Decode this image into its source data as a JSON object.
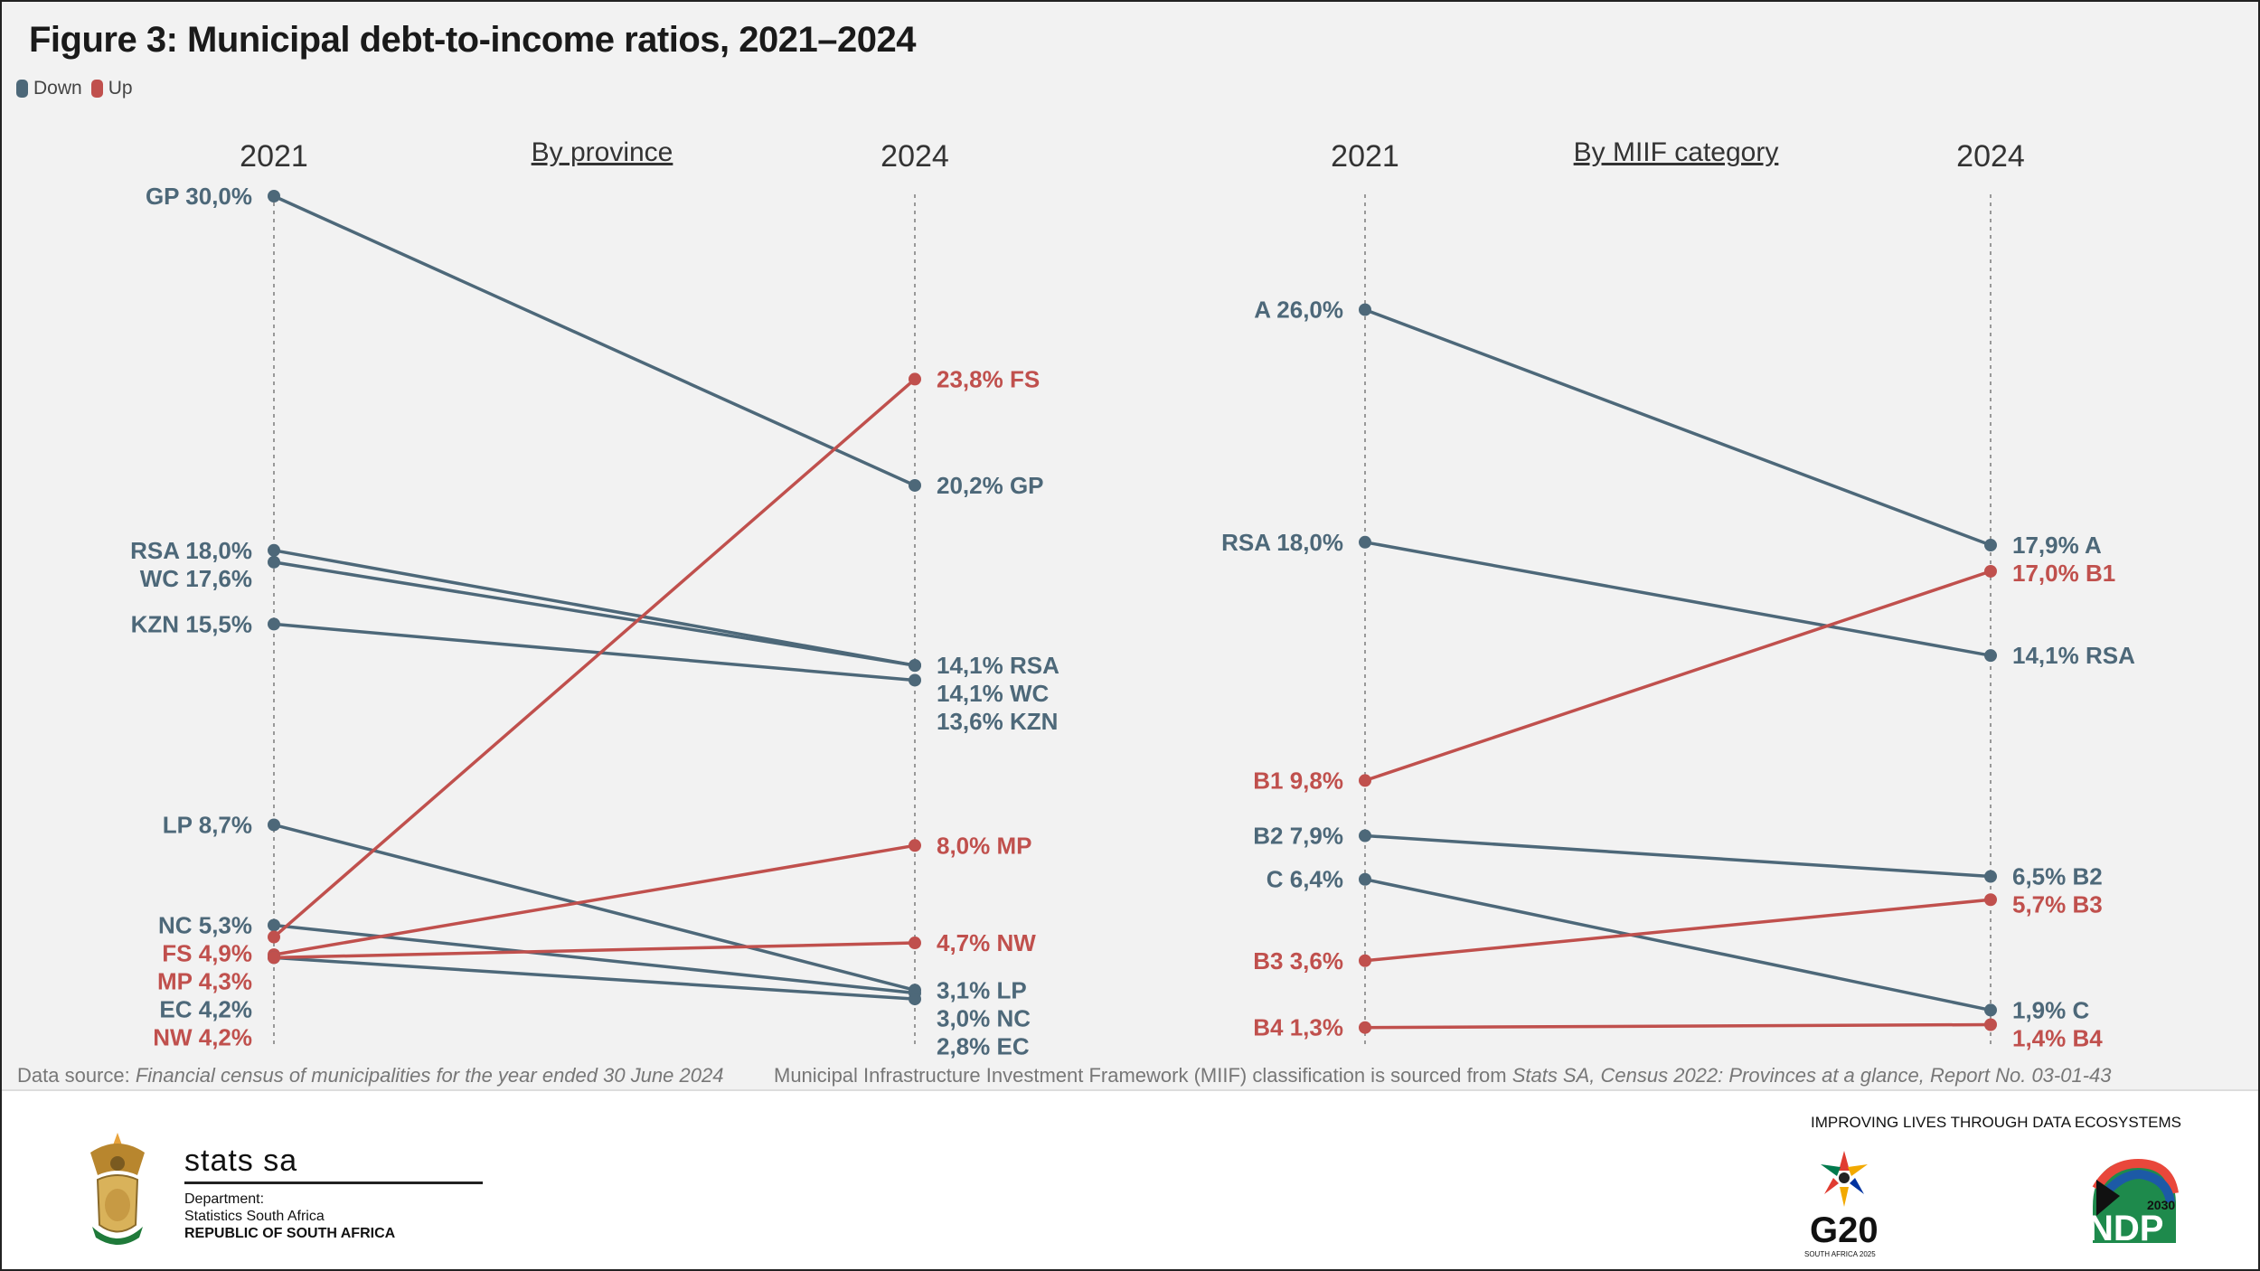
{
  "title": "Figure 3: Municipal debt-to-income ratios, 2021–2024",
  "legend": [
    {
      "label": "Down",
      "color": "#4d6879"
    },
    {
      "label": "Up",
      "color": "#c0504d"
    }
  ],
  "colors": {
    "down": "#4d6879",
    "up": "#c0504d",
    "background": "#f2f2f2"
  },
  "chart_data": [
    {
      "type": "slope",
      "subtitle": "By province",
      "x_labels": [
        "2021",
        "2024"
      ],
      "items": [
        {
          "code": "GP",
          "v2021": 30.0,
          "v2024": 20.2,
          "label_2021": "GP 30,0%",
          "label_2024": "20,2% GP",
          "direction": "down"
        },
        {
          "code": "RSA",
          "v2021": 18.0,
          "v2024": 14.1,
          "label_2021": "RSA 18,0%",
          "label_2024": "14,1% RSA",
          "direction": "down"
        },
        {
          "code": "WC",
          "v2021": 17.6,
          "v2024": 14.1,
          "label_2021": "WC 17,6%",
          "label_2024": "14,1% WC",
          "direction": "down"
        },
        {
          "code": "KZN",
          "v2021": 15.5,
          "v2024": 13.6,
          "label_2021": "KZN 15,5%",
          "label_2024": "13,6% KZN",
          "direction": "down"
        },
        {
          "code": "LP",
          "v2021": 8.7,
          "v2024": 3.1,
          "label_2021": "LP 8,7%",
          "label_2024": "3,1% LP",
          "direction": "down"
        },
        {
          "code": "NC",
          "v2021": 5.3,
          "v2024": 3.0,
          "label_2021": "NC 5,3%",
          "label_2024": "3,0% NC",
          "direction": "down"
        },
        {
          "code": "FS",
          "v2021": 4.9,
          "v2024": 23.8,
          "label_2021": "FS 4,9%",
          "label_2024": "23,8% FS",
          "direction": "up"
        },
        {
          "code": "MP",
          "v2021": 4.3,
          "v2024": 8.0,
          "label_2021": "MP 4,3%",
          "label_2024": "8,0% MP",
          "direction": "up"
        },
        {
          "code": "EC",
          "v2021": 4.2,
          "v2024": 2.8,
          "label_2021": "EC 4,2%",
          "label_2024": "2,8% EC",
          "direction": "down"
        },
        {
          "code": "NW",
          "v2021": 4.2,
          "v2024": 4.7,
          "label_2021": "NW 4,2%",
          "label_2024": "4,7% NW",
          "direction": "up"
        }
      ]
    },
    {
      "type": "slope",
      "subtitle": "By MIIF category",
      "x_labels": [
        "2021",
        "2024"
      ],
      "items": [
        {
          "code": "A",
          "v2021": 26.0,
          "v2024": 17.9,
          "label_2021": "A 26,0%",
          "label_2024": "17,9% A",
          "direction": "down"
        },
        {
          "code": "RSA",
          "v2021": 18.0,
          "v2024": 14.1,
          "label_2021": "RSA 18,0%",
          "label_2024": "14,1% RSA",
          "direction": "down"
        },
        {
          "code": "B1",
          "v2021": 9.8,
          "v2024": 17.0,
          "label_2021": "B1 9,8%",
          "label_2024": "17,0% B1",
          "direction": "up"
        },
        {
          "code": "B2",
          "v2021": 7.9,
          "v2024": 6.5,
          "label_2021": "B2 7,9%",
          "label_2024": "6,5% B2",
          "direction": "down"
        },
        {
          "code": "C",
          "v2021": 6.4,
          "v2024": 1.9,
          "label_2021": "C 6,4%",
          "label_2024": "1,9% C",
          "direction": "down"
        },
        {
          "code": "B3",
          "v2021": 3.6,
          "v2024": 5.7,
          "label_2021": "B3 3,6%",
          "label_2024": "5,7% B3",
          "direction": "up"
        },
        {
          "code": "B4",
          "v2021": 1.3,
          "v2024": 1.4,
          "label_2021": "B4 1,3%",
          "label_2024": "1,4% B4",
          "direction": "up"
        }
      ]
    }
  ],
  "footnotes": {
    "source_prefix": "Data source: ",
    "source_italic": "Financial census of municipalities for the year ended 30 June 2024",
    "miif_prefix": "Municipal Infrastructure Investment Framework (MIIF) classification is sourced from ",
    "miif_italic": "Stats SA, Census 2022: Provinces at a glance, Report No. 03-01-43"
  },
  "branding": {
    "stats_sa": "stats sa",
    "department": "Department:",
    "department_name": "Statistics South Africa",
    "republic": "REPUBLIC OF SOUTH AFRICA",
    "tagline": "IMPROVING LIVES THROUGH DATA ECOSYSTEMS",
    "g20": "G20",
    "g20_sub": "SOUTH AFRICA 2025",
    "ndp": "NDP",
    "ndp_year": "2030"
  }
}
